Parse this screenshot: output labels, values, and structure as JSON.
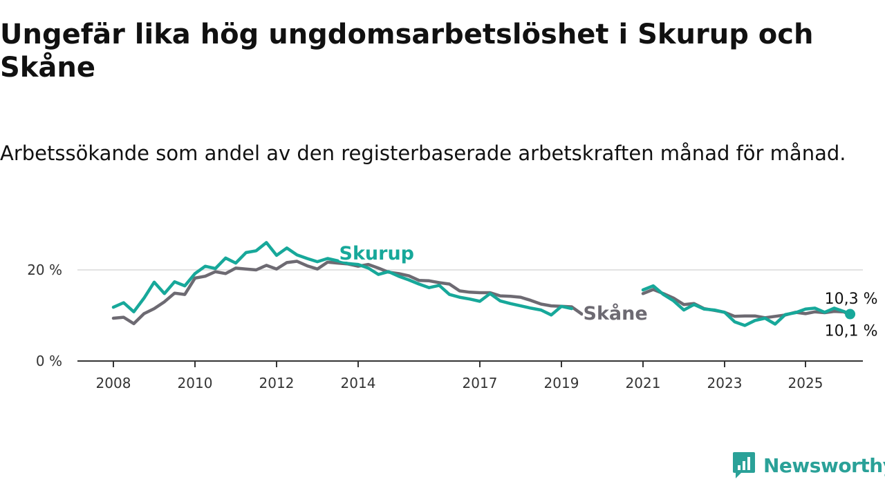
{
  "header": {
    "title": "Ungefär lika hög ungdomsarbetslöshet i Skurup och Skåne",
    "subtitle": "Arbetssökande som andel av den registerbaserade arbetskraften månad för månad."
  },
  "brand": {
    "name": "Newsworthy",
    "color": "#2aa198",
    "icon": "newsworthy-logo-icon"
  },
  "colors": {
    "skurup": "#17a89a",
    "skane": "#6d6a72",
    "grid": "#d9d9d9",
    "axis": "#333333"
  },
  "chart_data": {
    "type": "line",
    "title": "Ungefär lika hög ungdomsarbetslöshet i Skurup och Skåne",
    "subtitle": "Arbetssökande som andel av den registerbaserade arbetskraften månad för månad.",
    "x_ticks": [
      "2008",
      "2010",
      "2012",
      "2014",
      "2017",
      "2019",
      "2021",
      "2023",
      "2025"
    ],
    "y_ticks": [
      {
        "value": 0,
        "label": "0 %"
      },
      {
        "value": 20,
        "label": "20 %"
      }
    ],
    "ylim": [
      0,
      30
    ],
    "xlim": [
      "2007-10",
      "2026-06"
    ],
    "grid": true,
    "x_axis_note": "Uneven calendar spacing exactly as printed: 2014 is followed by 2017, and 2020 is missing.",
    "series": [
      {
        "name": "Skurup",
        "color": "#17a89a",
        "label_at": "2013-07",
        "end_label": "10,3 %",
        "end_marker": true,
        "points": [
          [
            "2008-01",
            11.8
          ],
          [
            "2008-04",
            12.8
          ],
          [
            "2008-07",
            10.8
          ],
          [
            "2008-10",
            13.8
          ],
          [
            "2009-01",
            17.3
          ],
          [
            "2009-04",
            14.8
          ],
          [
            "2009-07",
            17.4
          ],
          [
            "2009-10",
            16.5
          ],
          [
            "2010-01",
            19.2
          ],
          [
            "2010-04",
            20.8
          ],
          [
            "2010-07",
            20.3
          ],
          [
            "2010-10",
            22.6
          ],
          [
            "2011-01",
            21.5
          ],
          [
            "2011-04",
            23.8
          ],
          [
            "2011-07",
            24.2
          ],
          [
            "2011-10",
            26.0
          ],
          [
            "2012-01",
            23.2
          ],
          [
            "2012-04",
            24.8
          ],
          [
            "2012-07",
            23.3
          ],
          [
            "2012-10",
            22.5
          ],
          [
            "2013-01",
            21.8
          ],
          [
            "2013-04",
            22.5
          ],
          [
            "2013-07",
            22.0
          ],
          [
            "2013-10",
            21.4
          ],
          [
            "2014-01",
            21.2
          ],
          [
            "2014-04",
            20.4
          ],
          [
            "2014-07",
            19.0
          ],
          [
            "2014-10",
            19.6
          ],
          [
            "2015-01",
            18.6
          ],
          [
            "2015-04",
            17.8
          ],
          [
            "2015-07",
            16.9
          ],
          [
            "2015-10",
            16.1
          ],
          [
            "2016-01",
            16.6
          ],
          [
            "2016-04",
            14.6
          ],
          [
            "2016-07",
            14.0
          ],
          [
            "2016-10",
            13.6
          ],
          [
            "2017-01",
            13.1
          ],
          [
            "2017-04",
            14.8
          ],
          [
            "2017-07",
            13.2
          ],
          [
            "2017-10",
            12.6
          ],
          [
            "2018-01",
            12.1
          ],
          [
            "2018-04",
            11.6
          ],
          [
            "2018-07",
            11.2
          ],
          [
            "2018-10",
            10.1
          ],
          [
            "2019-01",
            12.0
          ],
          [
            "2019-04",
            11.5
          ],
          [
            "2019-07",
            null
          ],
          [
            "2019-10",
            null
          ],
          [
            "2020-01",
            null
          ],
          [
            "2020-04",
            null
          ],
          [
            "2020-07",
            null
          ],
          [
            "2020-10",
            null
          ],
          [
            "2021-01",
            15.6
          ],
          [
            "2021-04",
            16.5
          ],
          [
            "2021-07",
            14.6
          ],
          [
            "2021-10",
            13.2
          ],
          [
            "2022-01",
            11.2
          ],
          [
            "2022-04",
            12.4
          ],
          [
            "2022-07",
            11.4
          ],
          [
            "2022-10",
            11.2
          ],
          [
            "2023-01",
            10.7
          ],
          [
            "2023-04",
            8.6
          ],
          [
            "2023-07",
            7.8
          ],
          [
            "2023-10",
            8.9
          ],
          [
            "2024-01",
            9.4
          ],
          [
            "2024-04",
            8.1
          ],
          [
            "2024-07",
            10.2
          ],
          [
            "2024-10",
            10.6
          ],
          [
            "2025-01",
            11.4
          ],
          [
            "2025-04",
            11.6
          ],
          [
            "2025-07",
            10.7
          ],
          [
            "2025-10",
            11.6
          ],
          [
            "2026-01",
            10.9
          ],
          [
            "2026-03",
            10.3
          ]
        ]
      },
      {
        "name": "Skåne",
        "color": "#6d6a72",
        "label_at": "2019-07",
        "end_label": "10,1 %",
        "end_marker": false,
        "points": [
          [
            "2008-01",
            9.4
          ],
          [
            "2008-04",
            9.6
          ],
          [
            "2008-07",
            8.2
          ],
          [
            "2008-10",
            10.4
          ],
          [
            "2009-01",
            11.5
          ],
          [
            "2009-04",
            13.0
          ],
          [
            "2009-07",
            14.9
          ],
          [
            "2009-10",
            14.6
          ],
          [
            "2010-01",
            18.2
          ],
          [
            "2010-04",
            18.6
          ],
          [
            "2010-07",
            19.6
          ],
          [
            "2010-10",
            19.2
          ],
          [
            "2011-01",
            20.4
          ],
          [
            "2011-04",
            20.2
          ],
          [
            "2011-07",
            20.0
          ],
          [
            "2011-10",
            21.0
          ],
          [
            "2012-01",
            20.2
          ],
          [
            "2012-04",
            21.6
          ],
          [
            "2012-07",
            21.9
          ],
          [
            "2012-10",
            20.9
          ],
          [
            "2013-01",
            20.2
          ],
          [
            "2013-04",
            21.7
          ],
          [
            "2013-07",
            21.5
          ],
          [
            "2013-10",
            21.3
          ],
          [
            "2014-01",
            20.8
          ],
          [
            "2014-04",
            21.2
          ],
          [
            "2014-07",
            20.4
          ],
          [
            "2014-10",
            19.5
          ],
          [
            "2015-01",
            19.2
          ],
          [
            "2015-04",
            18.7
          ],
          [
            "2015-07",
            17.7
          ],
          [
            "2015-10",
            17.6
          ],
          [
            "2016-01",
            17.2
          ],
          [
            "2016-04",
            16.9
          ],
          [
            "2016-07",
            15.4
          ],
          [
            "2016-10",
            15.1
          ],
          [
            "2017-01",
            15.0
          ],
          [
            "2017-04",
            15.0
          ],
          [
            "2017-07",
            14.3
          ],
          [
            "2017-10",
            14.2
          ],
          [
            "2018-01",
            14.0
          ],
          [
            "2018-04",
            13.3
          ],
          [
            "2018-07",
            12.5
          ],
          [
            "2018-10",
            12.1
          ],
          [
            "2019-01",
            12.0
          ],
          [
            "2019-04",
            11.9
          ],
          [
            "2019-07",
            10.3
          ],
          [
            "2019-10",
            null
          ],
          [
            "2020-01",
            null
          ],
          [
            "2020-04",
            null
          ],
          [
            "2020-07",
            null
          ],
          [
            "2020-10",
            null
          ],
          [
            "2021-01",
            14.8
          ],
          [
            "2021-04",
            15.7
          ],
          [
            "2021-07",
            14.8
          ],
          [
            "2021-10",
            13.8
          ],
          [
            "2022-01",
            12.4
          ],
          [
            "2022-04",
            12.6
          ],
          [
            "2022-07",
            11.5
          ],
          [
            "2022-10",
            11.1
          ],
          [
            "2023-01",
            10.7
          ],
          [
            "2023-04",
            9.8
          ],
          [
            "2023-07",
            9.9
          ],
          [
            "2023-10",
            9.9
          ],
          [
            "2024-01",
            9.5
          ],
          [
            "2024-04",
            9.8
          ],
          [
            "2024-07",
            10.1
          ],
          [
            "2024-10",
            10.7
          ],
          [
            "2025-01",
            10.4
          ],
          [
            "2025-04",
            10.8
          ],
          [
            "2025-07",
            10.6
          ],
          [
            "2025-10",
            10.9
          ],
          [
            "2026-01",
            10.8
          ],
          [
            "2026-03",
            10.1
          ]
        ]
      }
    ]
  }
}
